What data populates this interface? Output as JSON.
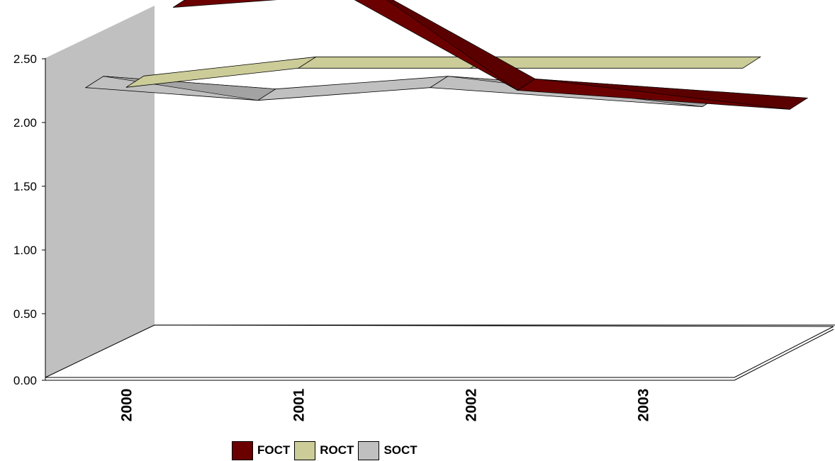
{
  "chart_data": {
    "type": "line",
    "style": "3d-ribbon",
    "categories": [
      "2000",
      "2001",
      "2002",
      "2003"
    ],
    "ylim": [
      0,
      2.5
    ],
    "yticks": [
      "0.00",
      "0.50",
      "1.00",
      "1.50",
      "2.00",
      "2.50"
    ],
    "series": [
      {
        "name": "FOCT",
        "values": [
          2.5,
          2.6,
          1.85,
          1.7
        ],
        "color": "#6b0000"
      },
      {
        "name": "ROCT",
        "values": [
          2.05,
          2.2,
          2.2,
          2.2
        ],
        "color": "#cccc99"
      },
      {
        "name": "SOCT",
        "values": [
          2.2,
          2.1,
          2.2,
          2.05
        ],
        "color": "#c0c0c0"
      }
    ],
    "legend_position": "bottom",
    "grid": false,
    "wall_color": "#c0c0c0"
  }
}
